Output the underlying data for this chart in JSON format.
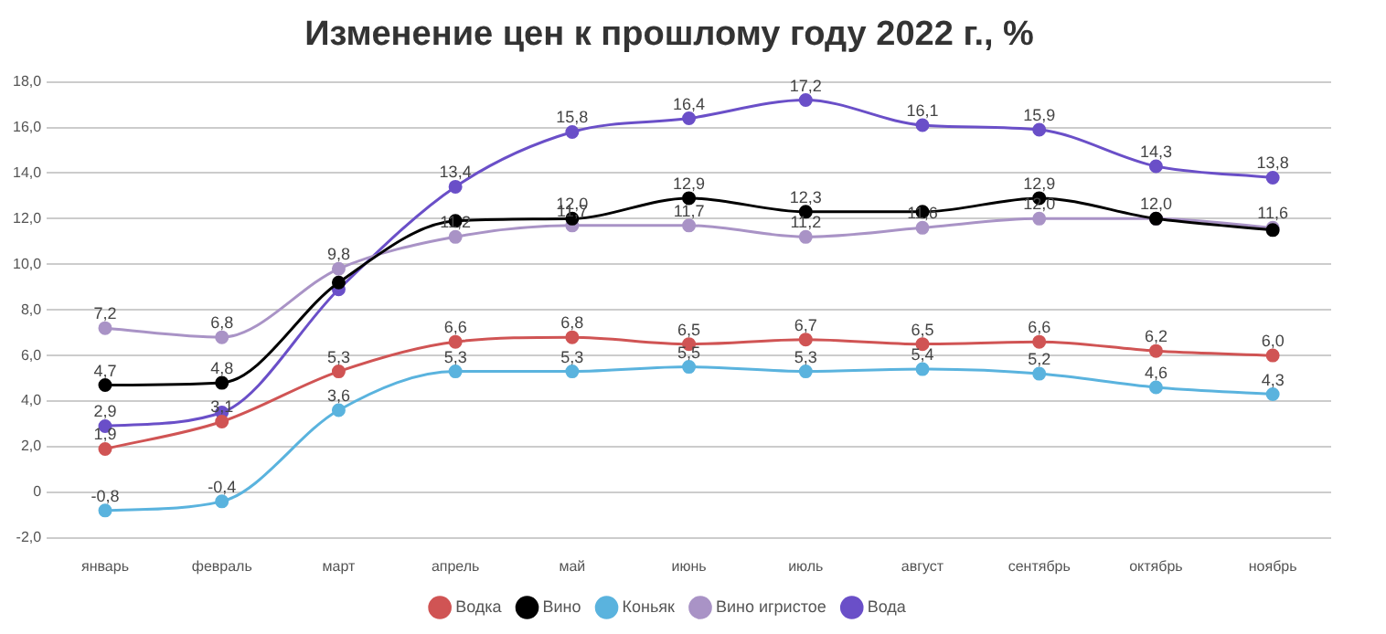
{
  "chart_data": {
    "type": "line",
    "title": "Изменение цен к прошлому году 2022 г., %",
    "categories": [
      "январь",
      "февраль",
      "март",
      "апрель",
      "май",
      "июнь",
      "июль",
      "август",
      "сентябрь",
      "октябрь",
      "ноябрь"
    ],
    "series": [
      {
        "name": "Водка",
        "color": "#d05454",
        "values": [
          1.9,
          3.1,
          5.3,
          6.6,
          6.8,
          6.5,
          6.7,
          6.5,
          6.6,
          6.2,
          6.0
        ],
        "value_labels": [
          "1,9",
          "3,1",
          "5,3",
          "6,6",
          "6,8",
          "6,5",
          "6,7",
          "6,5",
          "6,6",
          "6,2",
          "6,0"
        ]
      },
      {
        "name": "Вино",
        "color": "#000000",
        "values": [
          4.7,
          4.8,
          9.2,
          11.9,
          12.0,
          12.9,
          12.3,
          12.3,
          12.9,
          12.0,
          11.5
        ],
        "value_labels": [
          "4,7",
          "4,8",
          null,
          null,
          "12,0",
          "12,9",
          "12,3",
          null,
          "12,9",
          null,
          null
        ]
      },
      {
        "name": "Коньяк",
        "color": "#5ab3de",
        "values": [
          -0.8,
          -0.4,
          3.6,
          5.3,
          5.3,
          5.5,
          5.3,
          5.4,
          5.2,
          4.6,
          4.3
        ],
        "value_labels": [
          "-0,8",
          "-0,4",
          "3,6",
          "5,3",
          "5,3",
          "5,5",
          "5,3",
          "5,4",
          "5,2",
          "4,6",
          "4,3"
        ]
      },
      {
        "name": "Вино игристое",
        "color": "#a993c6",
        "values": [
          7.2,
          6.8,
          9.8,
          11.2,
          11.7,
          11.7,
          11.2,
          11.6,
          12.0,
          12.0,
          11.6
        ],
        "value_labels": [
          "7,2",
          "6,8",
          "9,8",
          "11,2",
          "11,7",
          "11,7",
          "11,2",
          "11,6",
          "12,0",
          "12,0",
          "11,6"
        ]
      },
      {
        "name": "Вода",
        "color": "#6a4fc8",
        "values": [
          2.9,
          3.5,
          8.9,
          13.4,
          15.8,
          16.4,
          17.2,
          16.1,
          15.9,
          14.3,
          13.8
        ],
        "value_labels": [
          "2,9",
          null,
          null,
          "13,4",
          "15,8",
          "16,4",
          "17,2",
          "16,1",
          "15,9",
          "14,3",
          "13,8"
        ]
      }
    ],
    "ylim": [
      -2,
      18
    ],
    "yticks": [
      {
        "value": -2,
        "label": "-2,0"
      },
      0,
      {
        "value": 2,
        "label": "2,0"
      },
      {
        "value": 4,
        "label": "4,0"
      },
      {
        "value": 6,
        "label": "6,0"
      },
      {
        "value": 8,
        "label": "8,0"
      },
      {
        "value": 10,
        "label": "10,0"
      },
      {
        "value": 12,
        "label": "12,0"
      },
      {
        "value": 14,
        "label": "14,0"
      },
      {
        "value": 16,
        "label": "16,0"
      },
      {
        "value": 18,
        "label": "18,0"
      }
    ],
    "grid": "y",
    "legend": "bottom",
    "marker": "circle",
    "line_style": "solid"
  }
}
